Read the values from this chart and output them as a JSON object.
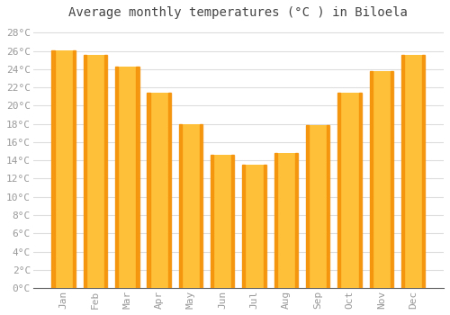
{
  "title": "Average monthly temperatures (°C ) in Biloela",
  "months": [
    "Jan",
    "Feb",
    "Mar",
    "Apr",
    "May",
    "Jun",
    "Jul",
    "Aug",
    "Sep",
    "Oct",
    "Nov",
    "Dec"
  ],
  "values": [
    26.1,
    25.6,
    24.3,
    21.4,
    18.0,
    14.6,
    13.5,
    14.8,
    17.9,
    21.4,
    23.8,
    25.6
  ],
  "bar_color_main": "#FFC039",
  "bar_color_edge": "#F5920A",
  "ylim": [
    0,
    29
  ],
  "yticks": [
    0,
    2,
    4,
    6,
    8,
    10,
    12,
    14,
    16,
    18,
    20,
    22,
    24,
    26,
    28
  ],
  "ytick_labels": [
    "0°C",
    "2°C",
    "4°C",
    "6°C",
    "8°C",
    "10°C",
    "12°C",
    "14°C",
    "16°C",
    "18°C",
    "20°C",
    "22°C",
    "24°C",
    "26°C",
    "28°C"
  ],
  "grid_color": "#dddddd",
  "bg_color": "#ffffff",
  "plot_bg_color": "#ffffff",
  "title_fontsize": 10,
  "tick_fontsize": 8,
  "tick_color": "#999999",
  "font_family": "monospace",
  "bar_width": 0.75
}
